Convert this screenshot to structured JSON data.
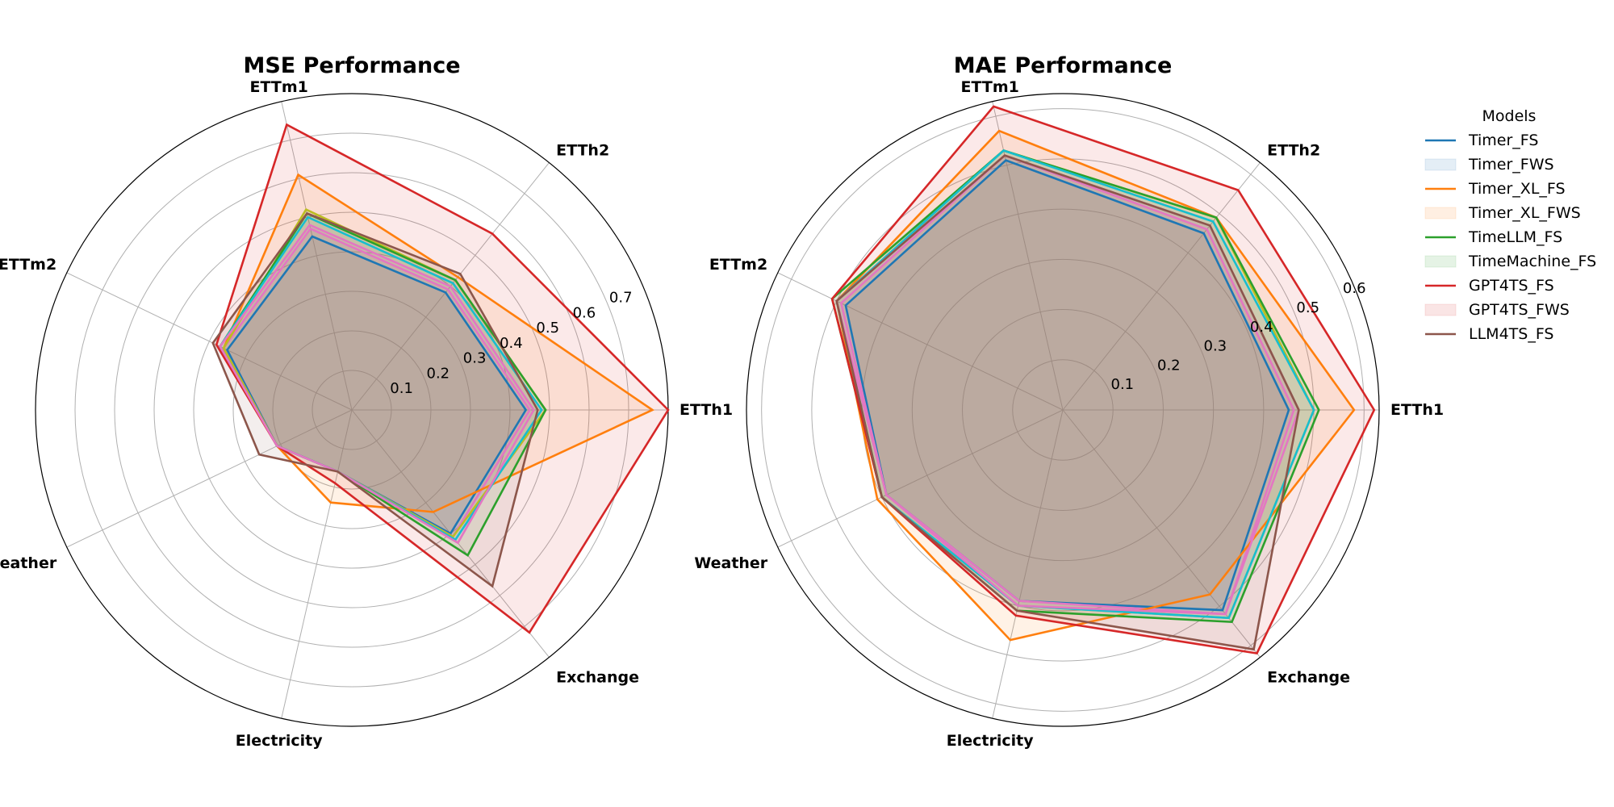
{
  "chart_data": [
    {
      "type": "radar",
      "title": "MSE Performance",
      "axes": [
        "ETTh1",
        "ETTh2",
        "ETTm1",
        "ETTm2",
        "Weather",
        "Electricity",
        "Exchange"
      ],
      "rlim": [
        0,
        0.8
      ],
      "rticks": [
        0.1,
        0.2,
        0.3,
        0.4,
        0.5,
        0.6,
        0.7
      ],
      "rtick_labels": [
        "0.1",
        "0.2",
        "0.3",
        "0.4",
        "0.5",
        "0.6",
        "0.7"
      ],
      "series": [
        {
          "name": "Timer_FS",
          "values": [
            0.44,
            0.38,
            0.45,
            0.35,
            0.21,
            0.16,
            0.4
          ]
        },
        {
          "name": "Timer_FWS",
          "values": [
            0.45,
            0.39,
            0.47,
            0.36,
            0.21,
            0.16,
            0.41
          ]
        },
        {
          "name": "Timer_XL_FS",
          "values": [
            0.76,
            0.43,
            0.61,
            0.36,
            0.21,
            0.24,
            0.33
          ]
        },
        {
          "name": "Timer_XL_FWS",
          "values": [
            0.49,
            0.42,
            0.52,
            0.36,
            0.21,
            0.16,
            0.41
          ]
        },
        {
          "name": "TimeLLM_FS",
          "values": [
            0.49,
            0.42,
            0.51,
            0.37,
            0.21,
            0.16,
            0.47
          ]
        },
        {
          "name": "TimeMachine_FS",
          "values": [
            0.48,
            0.41,
            0.5,
            0.37,
            0.21,
            0.16,
            0.42
          ]
        },
        {
          "name": "GPT4TS_FS",
          "values": [
            0.8,
            0.57,
            0.74,
            0.38,
            0.21,
            0.19,
            0.72
          ]
        },
        {
          "name": "GPT4TS_FWS",
          "values": [
            0.46,
            0.4,
            0.48,
            0.37,
            0.21,
            0.16,
            0.43
          ]
        },
        {
          "name": "LLM4TS_FS",
          "values": [
            0.47,
            0.44,
            0.51,
            0.39,
            0.26,
            0.16,
            0.57
          ]
        }
      ]
    },
    {
      "type": "radar",
      "title": "MAE Performance",
      "axes": [
        "ETTh1",
        "ETTh2",
        "ETTm1",
        "ETTm2",
        "Weather",
        "Electricity",
        "Exchange"
      ],
      "rlim": [
        0,
        0.63
      ],
      "rticks": [
        0.1,
        0.2,
        0.3,
        0.4,
        0.5,
        0.6
      ],
      "rtick_labels": [
        "0.1",
        "0.2",
        "0.3",
        "0.4",
        "0.5",
        "0.6"
      ],
      "series": [
        {
          "name": "Timer_FS",
          "values": [
            0.45,
            0.45,
            0.51,
            0.48,
            0.39,
            0.39,
            0.51
          ]
        },
        {
          "name": "Timer_FWS",
          "values": [
            0.46,
            0.46,
            0.52,
            0.49,
            0.39,
            0.39,
            0.52
          ]
        },
        {
          "name": "Timer_XL_FS",
          "values": [
            0.58,
            0.49,
            0.57,
            0.5,
            0.41,
            0.47,
            0.47
          ]
        },
        {
          "name": "Timer_XL_FWS",
          "values": [
            0.5,
            0.49,
            0.53,
            0.5,
            0.4,
            0.4,
            0.53
          ]
        },
        {
          "name": "TimeLLM_FS",
          "values": [
            0.51,
            0.49,
            0.53,
            0.51,
            0.4,
            0.41,
            0.54
          ]
        },
        {
          "name": "TimeMachine_FS",
          "values": [
            0.5,
            0.48,
            0.53,
            0.5,
            0.4,
            0.4,
            0.53
          ]
        },
        {
          "name": "GPT4TS_FS",
          "values": [
            0.62,
            0.56,
            0.62,
            0.51,
            0.4,
            0.42,
            0.62
          ]
        },
        {
          "name": "GPT4TS_FWS",
          "values": [
            0.47,
            0.47,
            0.52,
            0.5,
            0.39,
            0.4,
            0.52
          ]
        },
        {
          "name": "LLM4TS_FS",
          "values": [
            0.47,
            0.47,
            0.52,
            0.5,
            0.4,
            0.41,
            0.61
          ]
        }
      ]
    }
  ],
  "legend": {
    "title": "Models",
    "placement": "right",
    "items": [
      {
        "label": "Timer_FS",
        "kind": "line",
        "color": "#1f77b4"
      },
      {
        "label": "Timer_FWS",
        "kind": "patch",
        "color": "#1f77b4"
      },
      {
        "label": "Timer_XL_FS",
        "kind": "line",
        "color": "#ff7f0e"
      },
      {
        "label": "Timer_XL_FWS",
        "kind": "patch",
        "color": "#ff7f0e"
      },
      {
        "label": "TimeLLM_FS",
        "kind": "line",
        "color": "#2ca02c"
      },
      {
        "label": "TimeMachine_FS",
        "kind": "patch",
        "color": "#2ca02c"
      },
      {
        "label": "GPT4TS_FS",
        "kind": "line",
        "color": "#d62728"
      },
      {
        "label": "GPT4TS_FWS",
        "kind": "patch",
        "color": "#d62728"
      },
      {
        "label": "LLM4TS_FS",
        "kind": "line",
        "color": "#8c564b"
      }
    ]
  },
  "series_styles": [
    {
      "color": "#1f77b4",
      "fill": "#1f77b4",
      "fill_opacity": 0.1
    },
    {
      "color": "#e377c2",
      "fill": "#e377c2",
      "fill_opacity": 0.1
    },
    {
      "color": "#ff7f0e",
      "fill": "#ff7f0e",
      "fill_opacity": 0.1
    },
    {
      "color": "#bcbd22",
      "fill": "#bcbd22",
      "fill_opacity": 0.1
    },
    {
      "color": "#2ca02c",
      "fill": "#2ca02c",
      "fill_opacity": 0.1
    },
    {
      "color": "#17becf",
      "fill": "#17becf",
      "fill_opacity": 0.1
    },
    {
      "color": "#d62728",
      "fill": "#d62728",
      "fill_opacity": 0.1
    },
    {
      "color": "#e377c2",
      "fill": "#e377c2",
      "fill_opacity": 0.1
    },
    {
      "color": "#8c564b",
      "fill": "#8c564b",
      "fill_opacity": 0.1
    }
  ],
  "colors": {
    "grid": "#b0b0b0",
    "frame": "#000000",
    "background": "#ffffff"
  }
}
